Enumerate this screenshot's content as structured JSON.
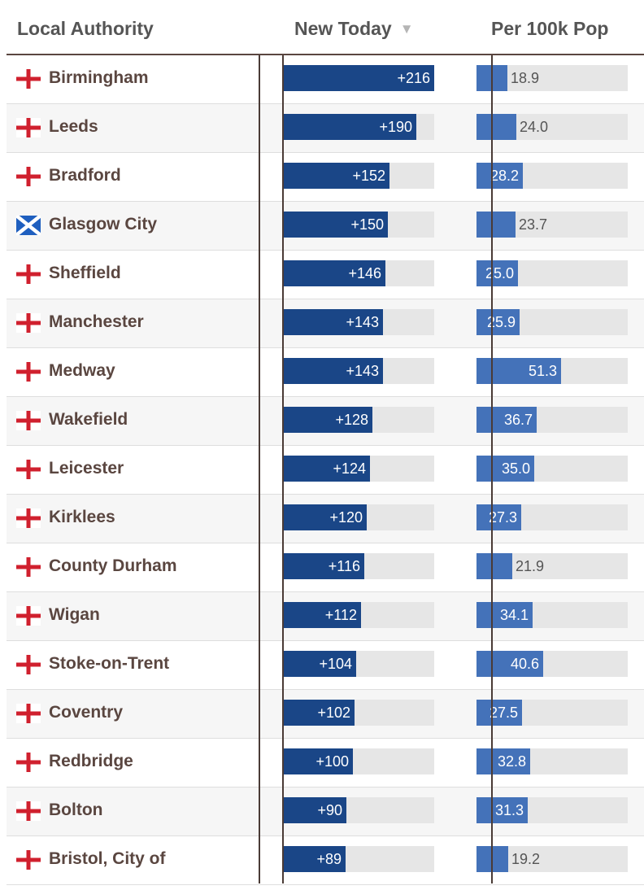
{
  "header": {
    "authority": "Local Authority",
    "new_today": "New Today",
    "sort_arrow": "▼",
    "per_100k": "Per 100k Pop"
  },
  "colors": {
    "new_bar": "#1a4687",
    "per_bar": "#4472b9",
    "track": "#e6e6e6",
    "england_cross": "#d0202e",
    "scotland_blue": "#1f5fbf"
  },
  "chart_data": {
    "type": "table",
    "columns": [
      "Local Authority",
      "New Today",
      "Per 100k Pop"
    ],
    "new_today_max": 216,
    "per_100k_max": 51.3,
    "rows": [
      {
        "flag": "england-flag-icon",
        "name": "Birmingham",
        "new_today": 216,
        "new_label": "+216",
        "per_100k": 18.9,
        "per_label": "18.9"
      },
      {
        "flag": "england-flag-icon",
        "name": "Leeds",
        "new_today": 190,
        "new_label": "+190",
        "per_100k": 24.0,
        "per_label": "24.0"
      },
      {
        "flag": "england-flag-icon",
        "name": "Bradford",
        "new_today": 152,
        "new_label": "+152",
        "per_100k": 28.2,
        "per_label": "28.2"
      },
      {
        "flag": "scotland-flag-icon",
        "name": "Glasgow City",
        "new_today": 150,
        "new_label": "+150",
        "per_100k": 23.7,
        "per_label": "23.7"
      },
      {
        "flag": "england-flag-icon",
        "name": "Sheffield",
        "new_today": 146,
        "new_label": "+146",
        "per_100k": 25.0,
        "per_label": "25.0"
      },
      {
        "flag": "england-flag-icon",
        "name": "Manchester",
        "new_today": 143,
        "new_label": "+143",
        "per_100k": 25.9,
        "per_label": "25.9"
      },
      {
        "flag": "england-flag-icon",
        "name": "Medway",
        "new_today": 143,
        "new_label": "+143",
        "per_100k": 51.3,
        "per_label": "51.3"
      },
      {
        "flag": "england-flag-icon",
        "name": "Wakefield",
        "new_today": 128,
        "new_label": "+128",
        "per_100k": 36.7,
        "per_label": "36.7"
      },
      {
        "flag": "england-flag-icon",
        "name": "Leicester",
        "new_today": 124,
        "new_label": "+124",
        "per_100k": 35.0,
        "per_label": "35.0"
      },
      {
        "flag": "england-flag-icon",
        "name": "Kirklees",
        "new_today": 120,
        "new_label": "+120",
        "per_100k": 27.3,
        "per_label": "27.3"
      },
      {
        "flag": "england-flag-icon",
        "name": "County Durham",
        "new_today": 116,
        "new_label": "+116",
        "per_100k": 21.9,
        "per_label": "21.9"
      },
      {
        "flag": "england-flag-icon",
        "name": "Wigan",
        "new_today": 112,
        "new_label": "+112",
        "per_100k": 34.1,
        "per_label": "34.1"
      },
      {
        "flag": "england-flag-icon",
        "name": "Stoke-on-Trent",
        "new_today": 104,
        "new_label": "+104",
        "per_100k": 40.6,
        "per_label": "40.6"
      },
      {
        "flag": "england-flag-icon",
        "name": "Coventry",
        "new_today": 102,
        "new_label": "+102",
        "per_100k": 27.5,
        "per_label": "27.5"
      },
      {
        "flag": "england-flag-icon",
        "name": "Redbridge",
        "new_today": 100,
        "new_label": "+100",
        "per_100k": 32.8,
        "per_label": "32.8"
      },
      {
        "flag": "england-flag-icon",
        "name": "Bolton",
        "new_today": 90,
        "new_label": "+90",
        "per_100k": 31.3,
        "per_label": "31.3"
      },
      {
        "flag": "england-flag-icon",
        "name": "Bristol, City of",
        "new_today": 89,
        "new_label": "+89",
        "per_100k": 19.2,
        "per_label": "19.2"
      }
    ]
  }
}
